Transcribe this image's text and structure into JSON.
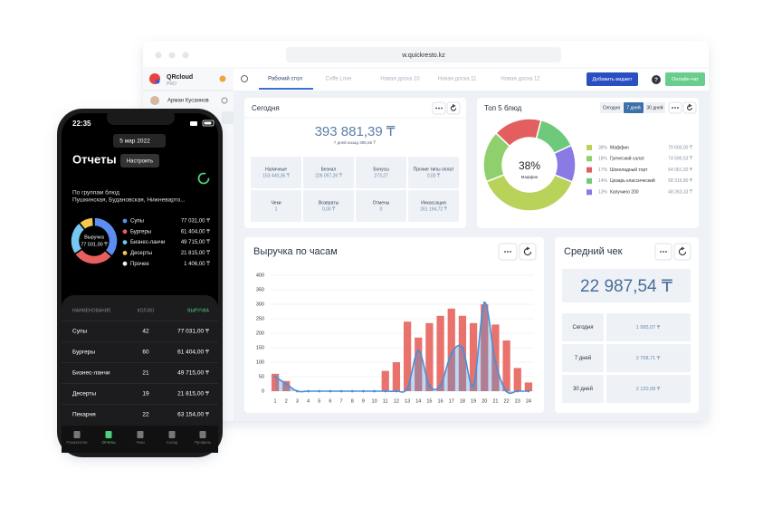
{
  "browser": {
    "url": "w.quickresto.kz"
  },
  "sidebar": {
    "brand": "QRcloud",
    "plan": "PRO",
    "user": "Арман Кусаинов"
  },
  "tabs": [
    "Рабочий стол",
    "Coffe Love",
    "Новая доска 10",
    "Новая доска 11",
    "Новая доска 12"
  ],
  "active_tab": 0,
  "toolbar": {
    "add_widget": "Добавить виджет",
    "help": "?",
    "chat": "Онлайн-чат"
  },
  "today": {
    "title": "Сегодня",
    "total": "393 881,39 ₸",
    "compare": "7 дней назад 395,56 ₸",
    "cells": [
      [
        "Наличные",
        "153 440,36 ₸"
      ],
      [
        "Безнал",
        "226 057,26 ₸"
      ],
      [
        "Бонусы",
        "273,27"
      ],
      [
        "Прочие типы оплат",
        "0,00 ₸"
      ],
      [
        "Чеки",
        "1"
      ],
      [
        "Возвраты",
        "0,00 ₸"
      ],
      [
        "Отмены",
        "0"
      ],
      [
        "Инкассация",
        "261 194,72 ₸"
      ]
    ]
  },
  "top5": {
    "title": "Топ 5 блюд",
    "periods": [
      "Сегодня",
      "7 дней",
      "30 дней"
    ],
    "active_period": 1,
    "chart": {
      "type": "pie",
      "categories": [
        "Маффин",
        "Греческий салат",
        "Шоколадный торт",
        "Цезарь классический",
        "Капучино 200"
      ],
      "values": [
        38,
        18,
        17,
        14,
        13
      ],
      "value_labels": [
        "38%",
        "18%",
        "17%",
        "14%",
        "13%"
      ],
      "amounts": [
        "79 600,00 ₸",
        "74 590,53 ₸",
        "54 051,92 ₸",
        "58 316,80 ₸",
        "48 263,33 ₸"
      ],
      "colors": [
        "#b9d25a",
        "#8fd06c",
        "#e35f5f",
        "#6fc97a",
        "#8a7ae3"
      ]
    }
  },
  "hourly": {
    "title": "Выручка по часам",
    "chart": {
      "type": "bar",
      "x": [
        1,
        2,
        3,
        4,
        5,
        6,
        7,
        8,
        9,
        10,
        11,
        12,
        13,
        14,
        15,
        16,
        17,
        18,
        19,
        20,
        21,
        22,
        23,
        24
      ],
      "xlim": [
        0.5,
        24.5
      ],
      "ylim": [
        0,
        400
      ],
      "yticks": [
        0,
        50,
        100,
        150,
        200,
        250,
        300,
        350,
        400
      ],
      "grid": true,
      "series": [
        {
          "type": "bar",
          "color": "#e9736c",
          "values": [
            60,
            35,
            0,
            0,
            0,
            0,
            0,
            0,
            0,
            0,
            70,
            100,
            240,
            185,
            235,
            260,
            285,
            260,
            235,
            300,
            230,
            175,
            80,
            30
          ]
        },
        {
          "type": "line",
          "color": "#4a8fd6",
          "values": [
            50,
            25,
            0,
            0,
            0,
            0,
            0,
            0,
            0,
            0,
            0,
            0,
            10,
            140,
            20,
            20,
            130,
            150,
            20,
            305,
            100,
            0,
            0,
            0
          ]
        }
      ]
    }
  },
  "avg_check": {
    "title": "Средний чек",
    "total": "22 987,54 ₸",
    "rows": [
      [
        "Сегодня",
        "1 995,07 ₸"
      ],
      [
        "7 дней",
        "2 708,71 ₸"
      ],
      [
        "30 дней",
        "2 120,08 ₸"
      ]
    ]
  },
  "phone": {
    "time": "22:35",
    "date": "5 мар 2022",
    "title": "Отчеты",
    "settings": "Настроить",
    "group_title": "По группам блюд",
    "locations": "Пушкинская, Будановская, Нижневарто...",
    "chart": {
      "type": "pie",
      "center_label": "Выручка",
      "categories": [
        "Супы",
        "Бургеры",
        "Бизнес-ланчи",
        "Десерты",
        "Прочее"
      ],
      "values": [
        77031,
        61404,
        49715,
        21815,
        1406
      ],
      "value_labels": [
        "77 031,00 ₸",
        "61 404,00 ₸",
        "49 715,00 ₸",
        "21 815,00 ₸",
        "1 406,00 ₸"
      ],
      "colors": [
        "#5b8ef0",
        "#e8605e",
        "#76c8f1",
        "#f3c84b",
        "#f2f2f2"
      ]
    },
    "table": {
      "header": [
        "НАИМЕНОВАНИЕ",
        "КОЛ-ВО",
        "ВЫРУЧКА"
      ],
      "rows": [
        [
          "Супы",
          42,
          "77 031,00 ₸"
        ],
        [
          "Бургеры",
          60,
          "61 404,00 ₸"
        ],
        [
          "Бизнес-ланчи",
          21,
          "49 715,00 ₸"
        ],
        [
          "Десерты",
          19,
          "21 815,00 ₸"
        ],
        [
          "Пекарня",
          22,
          "63 154,00 ₸"
        ]
      ]
    },
    "nav": [
      "Показатели",
      "Отчеты",
      "Чеки",
      "Склад",
      "Профиль"
    ],
    "active_nav": 1
  }
}
